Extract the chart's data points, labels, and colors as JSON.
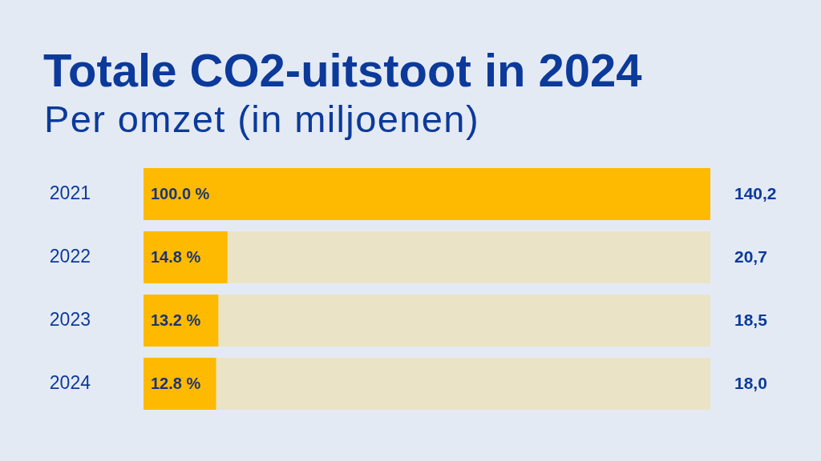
{
  "chart_data": {
    "type": "bar",
    "orientation": "horizontal",
    "title": "Totale CO2-uitstoot in 2024",
    "subtitle": "Per omzet (in miljoenen)",
    "categories": [
      "2021",
      "2022",
      "2023",
      "2024"
    ],
    "values": [
      100.0,
      14.8,
      13.2,
      12.8
    ],
    "value_labels": [
      "100.0 %",
      "14.8 %",
      "13.2 %",
      "12.8 %"
    ],
    "color": "#fdba00",
    "xlim": [
      0,
      100
    ],
    "tick_labels": "y",
    "grid": false,
    "annotations": [
      "140,2",
      "20,7",
      "18,5",
      "18,0"
    ]
  }
}
